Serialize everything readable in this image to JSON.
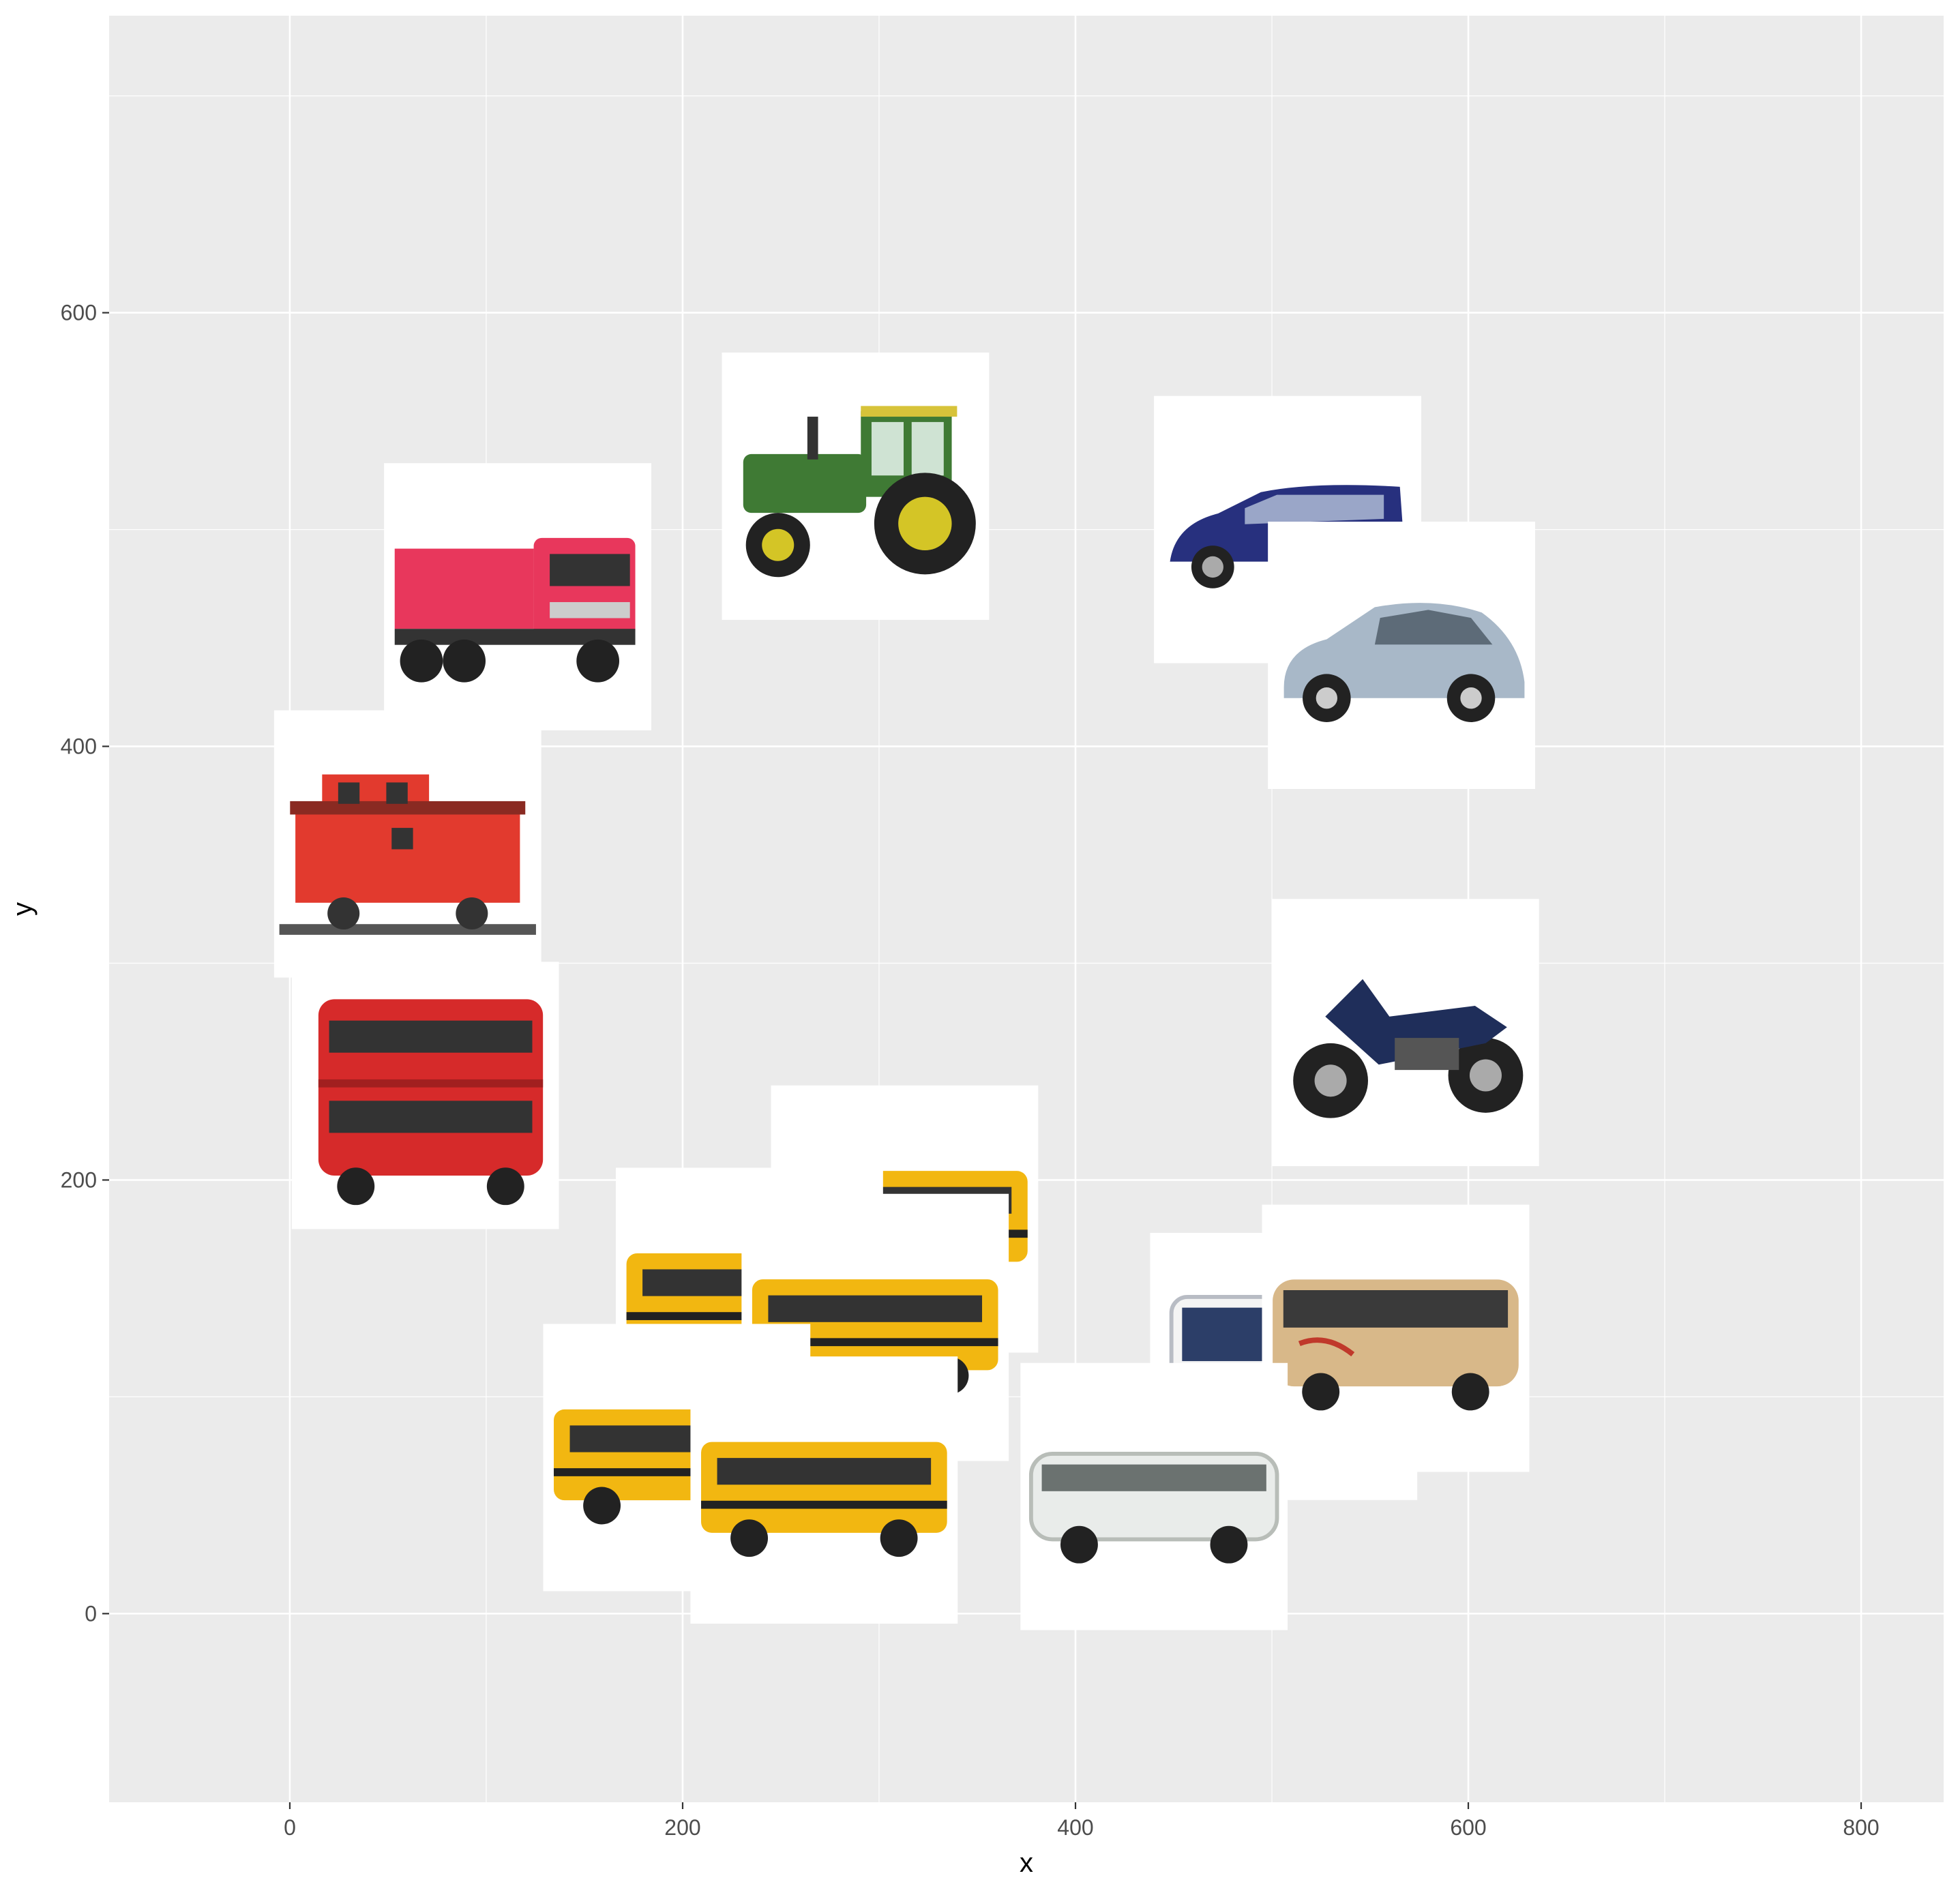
{
  "chart_data": {
    "type": "scatter",
    "title": "",
    "xlabel": "x",
    "ylabel": "y",
    "xlim": [
      -92,
      842
    ],
    "ylim": [
      -87,
      737
    ],
    "x_ticks": [
      0,
      200,
      400,
      600,
      800
    ],
    "y_ticks": [
      0,
      200,
      400,
      600
    ],
    "x_tick_labels": [
      "0",
      "200",
      "400",
      "600",
      "800"
    ],
    "y_tick_labels": [
      "0",
      "200",
      "400",
      "600"
    ],
    "grid": true,
    "point_marker": "image",
    "points": [
      {
        "x": 288,
        "y": 520,
        "icon": "tractor-icon"
      },
      {
        "x": 116,
        "y": 469,
        "icon": "dump-truck-icon"
      },
      {
        "x": 508,
        "y": 500,
        "icon": "blue-minivan-icon"
      },
      {
        "x": 566,
        "y": 442,
        "icon": "silver-hatchback-icon"
      },
      {
        "x": 60,
        "y": 355,
        "icon": "red-caboose-icon"
      },
      {
        "x": 568,
        "y": 268,
        "icon": "motorcycle-icon"
      },
      {
        "x": 69,
        "y": 239,
        "icon": "red-double-decker-bus-icon"
      },
      {
        "x": 313,
        "y": 182,
        "icon": "school-bus-icon"
      },
      {
        "x": 234,
        "y": 144,
        "icon": "school-bus-icon"
      },
      {
        "x": 298,
        "y": 132,
        "icon": "school-bus-icon"
      },
      {
        "x": 506,
        "y": 114,
        "icon": "white-city-bus-icon"
      },
      {
        "x": 563,
        "y": 127,
        "icon": "tan-coach-bus-icon"
      },
      {
        "x": 197,
        "y": 72,
        "icon": "school-bus-icon"
      },
      {
        "x": 272,
        "y": 57,
        "icon": "school-bus-icon"
      },
      {
        "x": 440,
        "y": 54,
        "icon": "white-coach-bus-icon"
      }
    ]
  }
}
